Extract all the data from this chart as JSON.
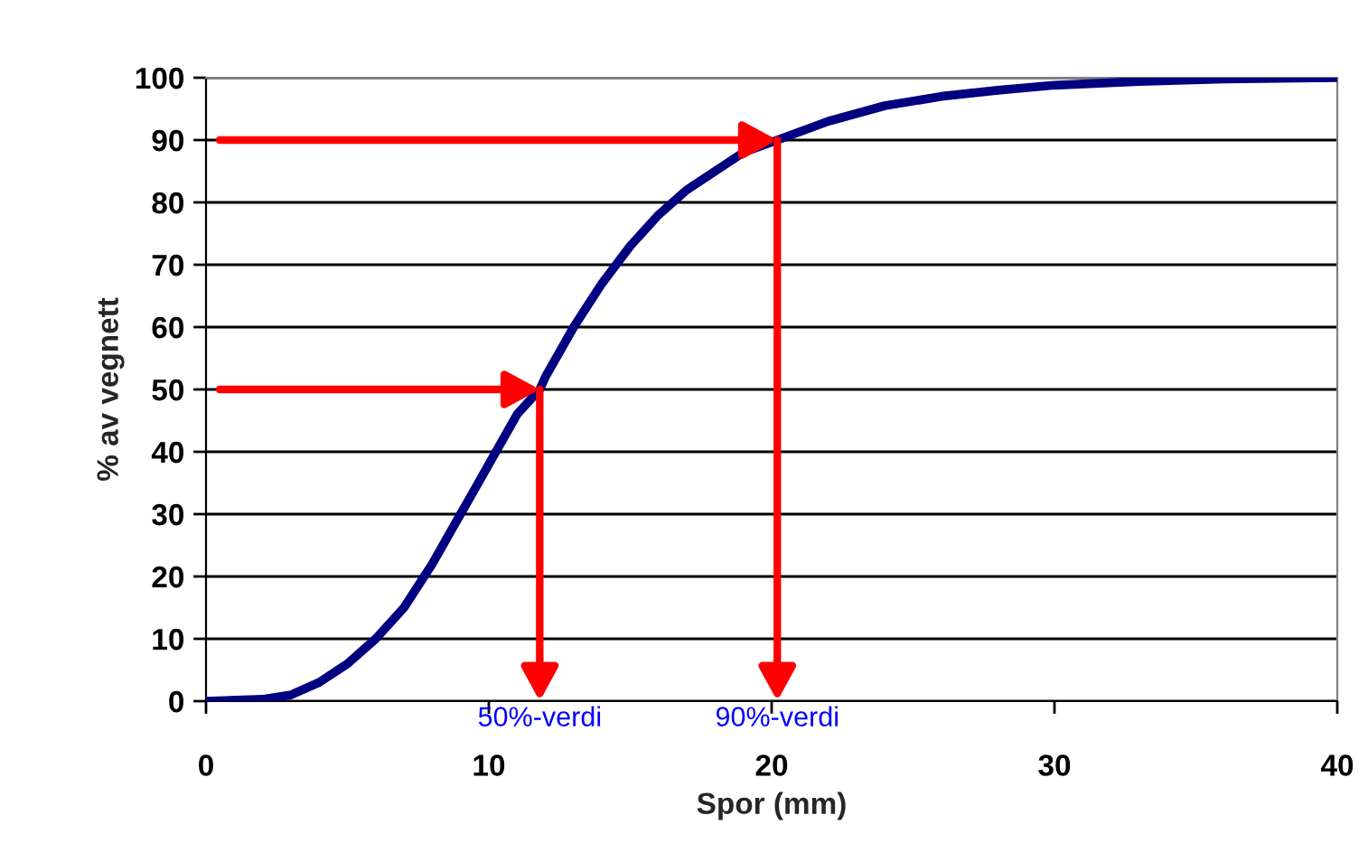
{
  "chart_data": {
    "type": "line",
    "xlabel": "Spor (mm)",
    "ylabel": "% av vegnett",
    "series": [
      {
        "color": "#000080",
        "x": [
          0,
          2,
          3,
          4,
          5,
          6,
          7,
          8,
          9,
          10,
          11,
          11.8,
          12,
          13,
          14,
          15,
          16,
          17,
          18,
          19,
          20.2,
          22,
          24,
          26,
          28,
          30,
          33,
          36,
          40
        ],
        "values": [
          0,
          0.3,
          1,
          3,
          6,
          10,
          15,
          22,
          30,
          38,
          46,
          50,
          52,
          60,
          67,
          73,
          78,
          82,
          85,
          88,
          90,
          93,
          95.5,
          97,
          98,
          98.8,
          99.4,
          99.8,
          100
        ]
      }
    ],
    "xlim": [
      0,
      40
    ],
    "xticks": [
      0,
      10,
      20,
      30,
      40
    ],
    "ylim": [
      0,
      100
    ],
    "yticks": [
      0,
      10,
      20,
      30,
      40,
      50,
      60,
      70,
      80,
      90,
      100
    ],
    "grid": "y",
    "legend": false,
    "annotations": [
      {
        "text": "50%-verdi",
        "x": 11.8,
        "y": 50
      },
      {
        "text": "90%-verdi",
        "x": 20.2,
        "y": 90
      }
    ]
  }
}
